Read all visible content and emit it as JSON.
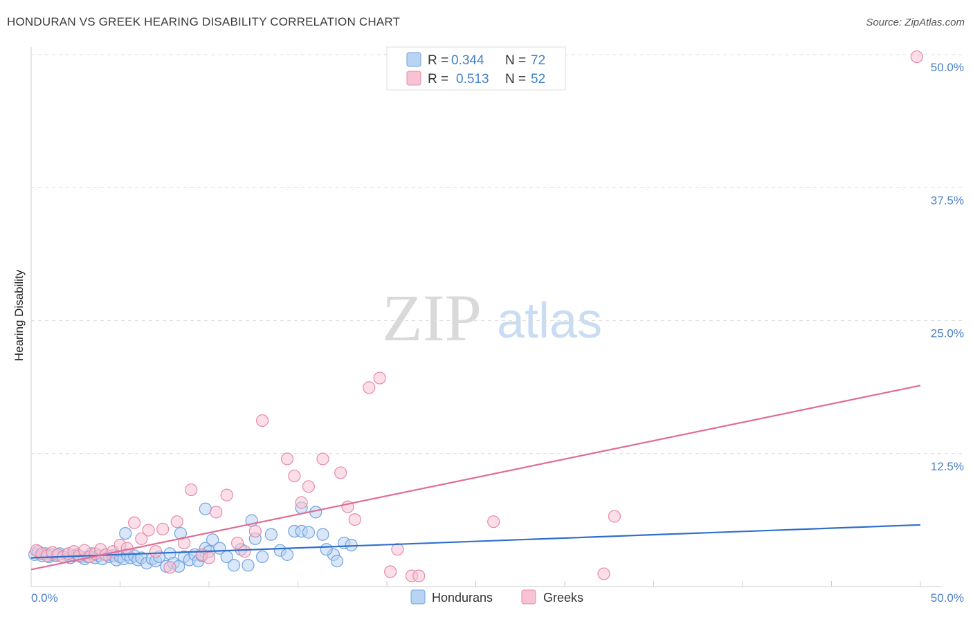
{
  "title": "HONDURAN VS GREEK HEARING DISABILITY CORRELATION CHART",
  "source": "Source: ZipAtlas.com",
  "watermark": {
    "zip": "ZIP",
    "atlas": "atlas"
  },
  "chart_data": {
    "type": "scatter",
    "title": "HONDURAN VS GREEK HEARING DISABILITY CORRELATION CHART",
    "xlabel": "",
    "ylabel": "Hearing Disability",
    "xlim": [
      0,
      50
    ],
    "ylim": [
      0,
      50
    ],
    "x_tick_labels": [
      "0.0%",
      "50.0%"
    ],
    "y_ticks": [
      12.5,
      25.0,
      37.5,
      50.0
    ],
    "y_tick_labels": [
      "12.5%",
      "25.0%",
      "37.5%",
      "50.0%"
    ],
    "grid": true,
    "legend": [
      {
        "name": "Hondurans",
        "r_label": "R =",
        "r": "0.344",
        "n_label": "N =",
        "n": "72",
        "color": "#6fa3e0",
        "fill": "#b9d3f3"
      },
      {
        "name": "Greeks",
        "r_label": "R =",
        "r": "0.513",
        "n_label": "N =",
        "n": "52",
        "color": "#e58aa8",
        "fill": "#f7c3d3"
      }
    ],
    "series": [
      {
        "name": "Hondurans",
        "color": "#6fa3e0",
        "trend": {
          "x": [
            0,
            50
          ],
          "y": [
            2.7,
            5.8
          ],
          "color": "#2f6fcc"
        },
        "points": [
          [
            0.2,
            3.0
          ],
          [
            0.4,
            3.3
          ],
          [
            0.6,
            2.9
          ],
          [
            0.8,
            3.1
          ],
          [
            1.0,
            2.8
          ],
          [
            1.2,
            3.0
          ],
          [
            1.4,
            2.9
          ],
          [
            1.6,
            3.1
          ],
          [
            1.8,
            2.8
          ],
          [
            2.0,
            3.0
          ],
          [
            2.2,
            2.7
          ],
          [
            2.4,
            2.9
          ],
          [
            2.6,
            3.0
          ],
          [
            2.8,
            2.8
          ],
          [
            3.0,
            2.6
          ],
          [
            3.2,
            2.8
          ],
          [
            3.4,
            3.1
          ],
          [
            3.6,
            2.7
          ],
          [
            3.8,
            2.9
          ],
          [
            4.0,
            2.6
          ],
          [
            4.2,
            3.0
          ],
          [
            4.4,
            2.8
          ],
          [
            4.6,
            2.9
          ],
          [
            4.8,
            2.5
          ],
          [
            5.0,
            2.8
          ],
          [
            5.2,
            2.6
          ],
          [
            5.4,
            3.0
          ],
          [
            5.6,
            2.7
          ],
          [
            5.8,
            2.9
          ],
          [
            6.0,
            2.5
          ],
          [
            6.2,
            2.7
          ],
          [
            6.5,
            2.2
          ],
          [
            6.8,
            2.6
          ],
          [
            7.0,
            2.4
          ],
          [
            7.2,
            2.8
          ],
          [
            7.6,
            1.9
          ],
          [
            7.8,
            3.1
          ],
          [
            8.0,
            2.2
          ],
          [
            8.3,
            1.9
          ],
          [
            8.6,
            2.8
          ],
          [
            8.9,
            2.5
          ],
          [
            9.2,
            3.0
          ],
          [
            9.4,
            2.4
          ],
          [
            9.6,
            2.9
          ],
          [
            9.8,
            3.6
          ],
          [
            10.0,
            3.3
          ],
          [
            10.2,
            4.4
          ],
          [
            10.6,
            3.6
          ],
          [
            11.0,
            2.8
          ],
          [
            11.4,
            2.0
          ],
          [
            11.8,
            3.5
          ],
          [
            12.2,
            2.0
          ],
          [
            12.6,
            4.5
          ],
          [
            13.0,
            2.8
          ],
          [
            13.5,
            4.9
          ],
          [
            14.0,
            3.4
          ],
          [
            14.4,
            3.0
          ],
          [
            14.8,
            5.2
          ],
          [
            15.2,
            5.2
          ],
          [
            15.6,
            5.1
          ],
          [
            16.4,
            4.9
          ],
          [
            17.0,
            3.0
          ],
          [
            17.6,
            4.1
          ],
          [
            18.0,
            3.9
          ],
          [
            5.3,
            5.0
          ],
          [
            8.4,
            5.0
          ],
          [
            9.8,
            7.3
          ],
          [
            12.4,
            6.2
          ],
          [
            15.2,
            7.4
          ],
          [
            16.0,
            7.0
          ],
          [
            16.6,
            3.5
          ],
          [
            17.2,
            2.4
          ]
        ]
      },
      {
        "name": "Greeks",
        "color": "#e58aa8",
        "trend": {
          "x": [
            0,
            50
          ],
          "y": [
            1.6,
            18.9
          ],
          "color": "#e06c93"
        },
        "points": [
          [
            0.3,
            3.4
          ],
          [
            0.6,
            3.1
          ],
          [
            0.9,
            2.9
          ],
          [
            1.2,
            3.2
          ],
          [
            1.5,
            3.0
          ],
          [
            1.8,
            2.8
          ],
          [
            2.1,
            3.1
          ],
          [
            2.4,
            3.3
          ],
          [
            2.7,
            2.9
          ],
          [
            3.0,
            3.4
          ],
          [
            3.3,
            2.8
          ],
          [
            3.6,
            3.1
          ],
          [
            3.9,
            3.5
          ],
          [
            4.2,
            3.0
          ],
          [
            4.6,
            3.3
          ],
          [
            5.0,
            3.9
          ],
          [
            5.4,
            3.6
          ],
          [
            5.8,
            6.0
          ],
          [
            6.2,
            4.5
          ],
          [
            6.6,
            5.3
          ],
          [
            7.0,
            3.3
          ],
          [
            7.4,
            5.4
          ],
          [
            7.8,
            1.8
          ],
          [
            8.2,
            6.1
          ],
          [
            8.6,
            4.1
          ],
          [
            9.0,
            9.1
          ],
          [
            9.6,
            3.0
          ],
          [
            10.0,
            2.7
          ],
          [
            10.4,
            7.0
          ],
          [
            11.0,
            8.6
          ],
          [
            11.6,
            4.1
          ],
          [
            12.0,
            3.3
          ],
          [
            12.6,
            5.2
          ],
          [
            13.0,
            15.6
          ],
          [
            14.4,
            12.0
          ],
          [
            14.8,
            10.4
          ],
          [
            15.2,
            7.9
          ],
          [
            15.6,
            9.4
          ],
          [
            16.4,
            12.0
          ],
          [
            17.4,
            10.7
          ],
          [
            17.8,
            7.5
          ],
          [
            18.2,
            6.3
          ],
          [
            19.0,
            18.7
          ],
          [
            19.6,
            19.6
          ],
          [
            20.2,
            1.4
          ],
          [
            20.6,
            3.5
          ],
          [
            21.4,
            1.0
          ],
          [
            21.8,
            1.0
          ],
          [
            26.0,
            6.1
          ],
          [
            32.2,
            1.2
          ],
          [
            32.8,
            6.6
          ],
          [
            49.8,
            49.8
          ]
        ]
      }
    ]
  }
}
